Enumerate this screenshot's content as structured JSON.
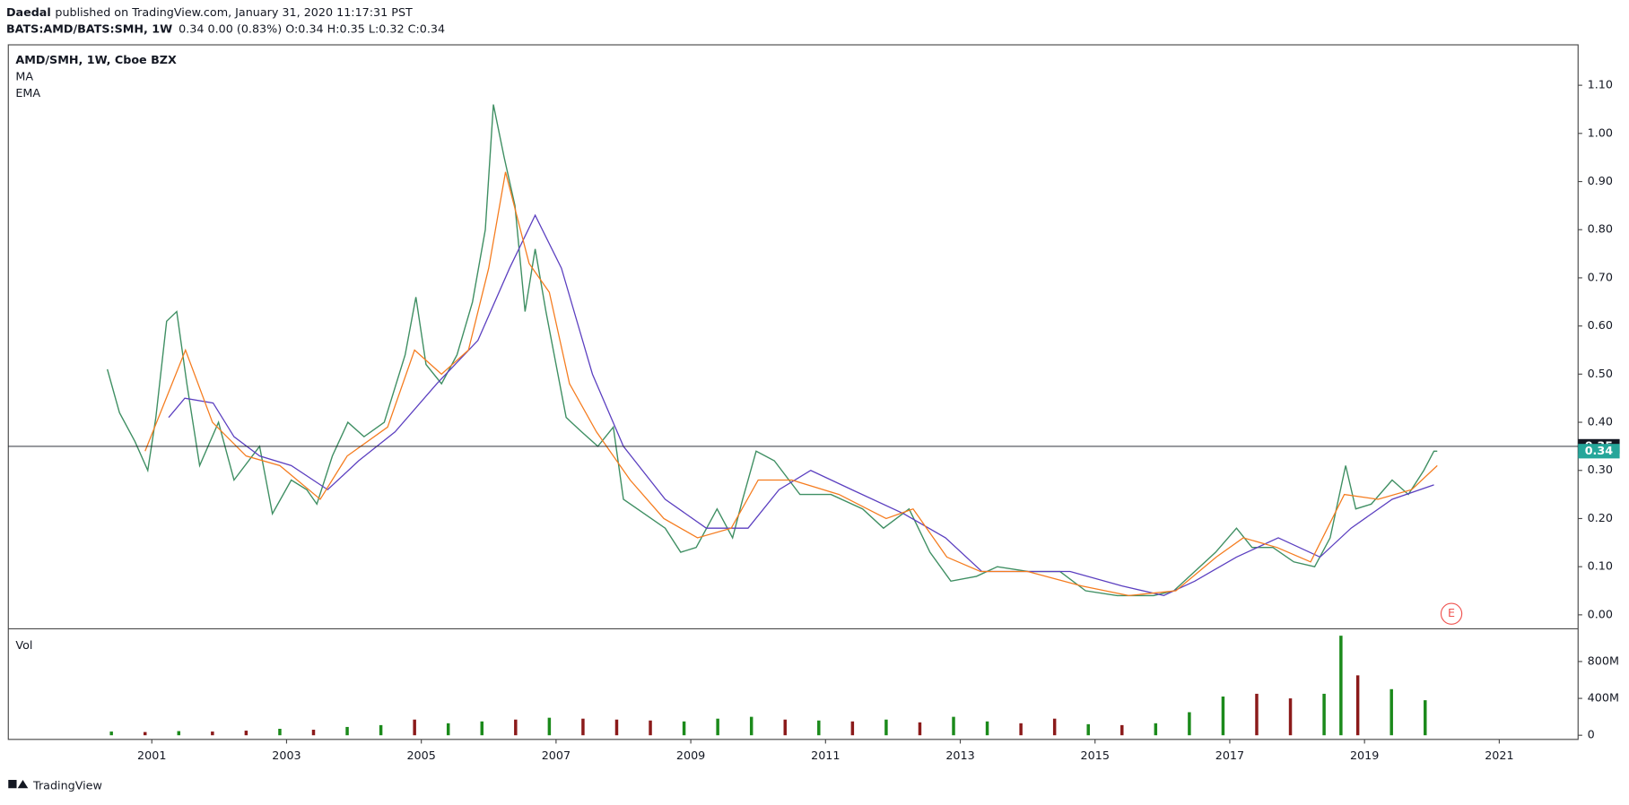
{
  "header": {
    "author": "Daedal",
    "published": "published on TradingView.com, January 31, 2020 11:17:31 PST",
    "symbol": "BATS:AMD/BATS:SMH, 1W",
    "quote": "0.34 0.00 (0.83%) O:0.34 H:0.35 L:0.32 C:0.34"
  },
  "footer": {
    "brand": "TradingView"
  },
  "chart_data": [
    {
      "type": "line",
      "xlim": [
        1998.87,
        2022.17
      ],
      "ylim": [
        -0.028,
        1.184
      ],
      "yticks": [
        {
          "value": 0,
          "label": "0.00"
        },
        {
          "value": 0.1,
          "label": "0.10"
        },
        {
          "value": 0.2,
          "label": "0.20"
        },
        {
          "value": 0.3,
          "label": "0.30"
        },
        {
          "value": 0.4,
          "label": "0.40"
        },
        {
          "value": 0.5,
          "label": "0.50"
        },
        {
          "value": 0.6,
          "label": "0.60"
        },
        {
          "value": 0.7,
          "label": "0.70"
        },
        {
          "value": 0.8,
          "label": "0.80"
        },
        {
          "value": 0.9,
          "label": "0.90"
        },
        {
          "value": 1,
          "label": "1.00"
        },
        {
          "value": 1.1,
          "label": "1.10"
        }
      ],
      "series": [
        {
          "name": "AMD/SMH, 1W, Cboe BZX",
          "color": "#3f8f63",
          "x": [
            2000.34,
            2000.52,
            2000.75,
            2000.94,
            2001.06,
            2001.22,
            2001.37,
            2001.52,
            2001.71,
            2001.99,
            2002.22,
            2002.6,
            2002.79,
            2003.07,
            2003.3,
            2003.45,
            2003.68,
            2003.91,
            2004.15,
            2004.45,
            2004.76,
            2004.92,
            2005.07,
            2005.3,
            2005.53,
            2005.76,
            2005.95,
            2006.07,
            2006.23,
            2006.39,
            2006.54,
            2006.69,
            2006.85,
            2007.0,
            2007.15,
            2007.38,
            2007.62,
            2007.85,
            2008.0,
            2008.31,
            2008.62,
            2008.85,
            2009.08,
            2009.39,
            2009.62,
            2009.77,
            2009.97,
            2010.24,
            2010.62,
            2011.08,
            2011.55,
            2011.86,
            2012.24,
            2012.55,
            2012.86,
            2013.24,
            2013.55,
            2014.01,
            2014.48,
            2014.86,
            2015.33,
            2015.87,
            2016.17,
            2016.48,
            2016.79,
            2017.1,
            2017.33,
            2017.64,
            2017.95,
            2018.26,
            2018.49,
            2018.72,
            2018.87,
            2019.1,
            2019.41,
            2019.65,
            2019.88,
            2020.03,
            2020.08
          ],
          "values": [
            0.51,
            0.42,
            0.36,
            0.3,
            0.41,
            0.61,
            0.63,
            0.48,
            0.31,
            0.4,
            0.28,
            0.35,
            0.21,
            0.28,
            0.26,
            0.23,
            0.33,
            0.4,
            0.37,
            0.4,
            0.54,
            0.66,
            0.52,
            0.48,
            0.54,
            0.65,
            0.8,
            1.06,
            0.95,
            0.85,
            0.63,
            0.76,
            0.63,
            0.52,
            0.41,
            0.38,
            0.35,
            0.39,
            0.24,
            0.21,
            0.18,
            0.13,
            0.14,
            0.22,
            0.16,
            0.24,
            0.34,
            0.32,
            0.25,
            0.25,
            0.22,
            0.18,
            0.22,
            0.13,
            0.07,
            0.08,
            0.1,
            0.09,
            0.09,
            0.05,
            0.04,
            0.04,
            0.05,
            0.09,
            0.13,
            0.18,
            0.14,
            0.14,
            0.11,
            0.1,
            0.16,
            0.31,
            0.22,
            0.23,
            0.28,
            0.25,
            0.3,
            0.34,
            0.34
          ]
        },
        {
          "name": "MA",
          "color": "#5b3fc0",
          "x": [
            2001.25,
            2001.49,
            2001.91,
            2002.22,
            2002.6,
            2003.07,
            2003.61,
            2004.07,
            2004.61,
            2005.23,
            2005.84,
            2006.31,
            2006.69,
            2007.08,
            2007.54,
            2008.0,
            2008.62,
            2009.23,
            2009.85,
            2010.31,
            2010.78,
            2011.39,
            2012.16,
            2012.78,
            2013.32,
            2013.86,
            2014.63,
            2015.4,
            2016.02,
            2016.48,
            2017.1,
            2017.72,
            2018.34,
            2018.8,
            2019.41,
            2020.03
          ],
          "values": [
            0.41,
            0.45,
            0.44,
            0.37,
            0.33,
            0.31,
            0.26,
            0.32,
            0.38,
            0.48,
            0.57,
            0.72,
            0.83,
            0.72,
            0.5,
            0.35,
            0.24,
            0.18,
            0.18,
            0.26,
            0.3,
            0.26,
            0.21,
            0.16,
            0.09,
            0.09,
            0.09,
            0.06,
            0.04,
            0.07,
            0.12,
            0.16,
            0.12,
            0.18,
            0.24,
            0.27
          ]
        },
        {
          "name": "EMA",
          "color": "#f57c1f",
          "x": [
            2000.9,
            2001.5,
            2001.9,
            2002.4,
            2002.9,
            2003.5,
            2003.9,
            2004.5,
            2004.9,
            2005.3,
            2005.7,
            2006.0,
            2006.25,
            2006.6,
            2006.9,
            2007.2,
            2007.6,
            2008.1,
            2008.6,
            2009.1,
            2009.6,
            2010.0,
            2010.5,
            2011.2,
            2011.9,
            2012.3,
            2012.8,
            2013.3,
            2014.0,
            2014.8,
            2015.5,
            2016.2,
            2016.8,
            2017.2,
            2017.7,
            2018.2,
            2018.7,
            2019.2,
            2019.7,
            2020.08
          ],
          "values": [
            0.34,
            0.55,
            0.4,
            0.33,
            0.31,
            0.24,
            0.33,
            0.39,
            0.55,
            0.5,
            0.55,
            0.72,
            0.92,
            0.73,
            0.67,
            0.48,
            0.38,
            0.28,
            0.2,
            0.16,
            0.18,
            0.28,
            0.28,
            0.25,
            0.2,
            0.22,
            0.12,
            0.09,
            0.09,
            0.06,
            0.04,
            0.05,
            0.12,
            0.16,
            0.14,
            0.11,
            0.25,
            0.24,
            0.26,
            0.31
          ]
        }
      ],
      "price_labels": [
        {
          "value": 0.35,
          "background": "#131722",
          "line": true
        },
        {
          "value": 0.34,
          "background": "#26a69a",
          "line": false
        }
      ],
      "events": [
        {
          "x": 2020.29,
          "label": "E",
          "color": "#ef5350"
        }
      ]
    },
    {
      "type": "bar",
      "title": "Vol",
      "xlim": [
        1998.87,
        2022.17
      ],
      "ylim": [
        -45000000,
        1149000000
      ],
      "xticks": [
        2001,
        2003,
        2005,
        2007,
        2009,
        2011,
        2013,
        2015,
        2017,
        2019,
        2021
      ],
      "yticks": [
        0,
        {
          "value": 400000000,
          "label": "400M"
        },
        {
          "value": 800000000,
          "label": "800M"
        }
      ],
      "x": [
        2000.4,
        2000.9,
        2001.4,
        2001.9,
        2002.4,
        2002.9,
        2003.4,
        2003.9,
        2004.4,
        2004.9,
        2005.4,
        2005.9,
        2006.4,
        2006.9,
        2007.4,
        2007.9,
        2008.4,
        2008.9,
        2009.4,
        2009.9,
        2010.4,
        2010.9,
        2011.4,
        2011.9,
        2012.4,
        2012.9,
        2013.4,
        2013.9,
        2014.4,
        2014.9,
        2015.4,
        2015.9,
        2016.4,
        2016.9,
        2017.4,
        2017.9,
        2018.4,
        2018.65,
        2018.9,
        2019.4,
        2019.9
      ],
      "values": [
        40000000,
        35000000,
        45000000,
        40000000,
        50000000,
        70000000,
        60000000,
        90000000,
        110000000,
        170000000,
        130000000,
        150000000,
        170000000,
        190000000,
        180000000,
        170000000,
        160000000,
        150000000,
        180000000,
        200000000,
        170000000,
        160000000,
        150000000,
        170000000,
        140000000,
        200000000,
        150000000,
        130000000,
        180000000,
        120000000,
        110000000,
        130000000,
        250000000,
        420000000,
        450000000,
        400000000,
        450000000,
        1080000000,
        650000000,
        500000000,
        380000000
      ],
      "colors": [
        "#1b8a1b",
        "#8b1a1a",
        "#1b8a1b",
        "#8b1a1a",
        "#8b1a1a",
        "#1b8a1b",
        "#8b1a1a",
        "#1b8a1b",
        "#1b8a1b",
        "#8b1a1a",
        "#1b8a1b",
        "#1b8a1b",
        "#8b1a1a",
        "#1b8a1b",
        "#8b1a1a",
        "#8b1a1a",
        "#8b1a1a",
        "#1b8a1b",
        "#1b8a1b",
        "#1b8a1b",
        "#8b1a1a",
        "#1b8a1b",
        "#8b1a1a",
        "#1b8a1b",
        "#8b1a1a",
        "#1b8a1b",
        "#1b8a1b",
        "#8b1a1a",
        "#8b1a1a",
        "#1b8a1b",
        "#8b1a1a",
        "#1b8a1b",
        "#1b8a1b",
        "#1b8a1b",
        "#8b1a1a",
        "#8b1a1a",
        "#1b8a1b",
        "#1b8a1b",
        "#8b1a1a",
        "#1b8a1b",
        "#1b8a1b"
      ]
    }
  ]
}
